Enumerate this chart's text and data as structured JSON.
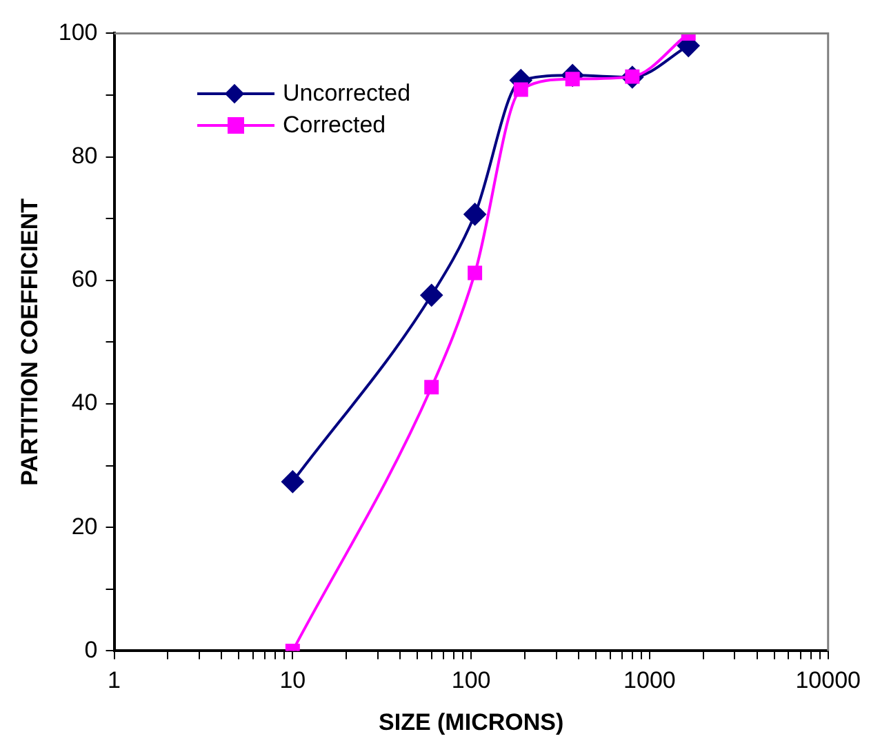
{
  "chart_data": {
    "type": "line",
    "xlabel": "SIZE (MICRONS)",
    "ylabel": "PARTITION COEFFICIENT",
    "log": "x",
    "xlim": [
      1,
      10000
    ],
    "ylim": [
      0,
      100
    ],
    "xticks": [
      1,
      {
        "value": 2,
        "label": null
      },
      {
        "value": 3,
        "label": null
      },
      {
        "value": 4,
        "label": null
      },
      {
        "value": 5,
        "label": null
      },
      {
        "value": 6,
        "label": null
      },
      {
        "value": 7,
        "label": null
      },
      {
        "value": 8,
        "label": null
      },
      {
        "value": 9,
        "label": null
      },
      10,
      {
        "value": 20,
        "label": null
      },
      {
        "value": 30,
        "label": null
      },
      {
        "value": 40,
        "label": null
      },
      {
        "value": 50,
        "label": null
      },
      {
        "value": 60,
        "label": null
      },
      {
        "value": 70,
        "label": null
      },
      {
        "value": 80,
        "label": null
      },
      {
        "value": 90,
        "label": null
      },
      100,
      {
        "value": 200,
        "label": null
      },
      {
        "value": 300,
        "label": null
      },
      {
        "value": 400,
        "label": null
      },
      {
        "value": 500,
        "label": null
      },
      {
        "value": 600,
        "label": null
      },
      {
        "value": 700,
        "label": null
      },
      {
        "value": 800,
        "label": null
      },
      {
        "value": 900,
        "label": null
      },
      1000,
      {
        "value": 2000,
        "label": null
      },
      {
        "value": 3000,
        "label": null
      },
      {
        "value": 4000,
        "label": null
      },
      {
        "value": 5000,
        "label": null
      },
      {
        "value": 6000,
        "label": null
      },
      {
        "value": 7000,
        "label": null
      },
      {
        "value": 8000,
        "label": null
      },
      {
        "value": 9000,
        "label": null
      },
      10000
    ],
    "yticks": [
      0,
      {
        "value": 10,
        "label": null
      },
      20,
      {
        "value": 30,
        "label": null
      },
      40,
      {
        "value": 50,
        "label": null
      },
      60,
      {
        "value": 70,
        "label": null
      },
      80,
      {
        "value": 90,
        "label": null
      },
      100
    ],
    "grid": false,
    "legend": "top left",
    "series": [
      {
        "name": "Uncorrected",
        "color": "#000080",
        "marker": "diamond",
        "x": [
          10,
          60,
          105,
          190,
          370,
          800,
          1650
        ],
        "values": [
          27.4,
          57.6,
          70.7,
          92.4,
          93.2,
          92.9,
          98
        ]
      },
      {
        "name": "Corrected",
        "color": "#ff00ff",
        "marker": "square",
        "x": [
          10,
          60,
          105,
          190,
          370,
          800,
          1650
        ],
        "values": [
          0,
          42.7,
          61.2,
          90.9,
          92.6,
          93,
          100
        ]
      }
    ]
  }
}
